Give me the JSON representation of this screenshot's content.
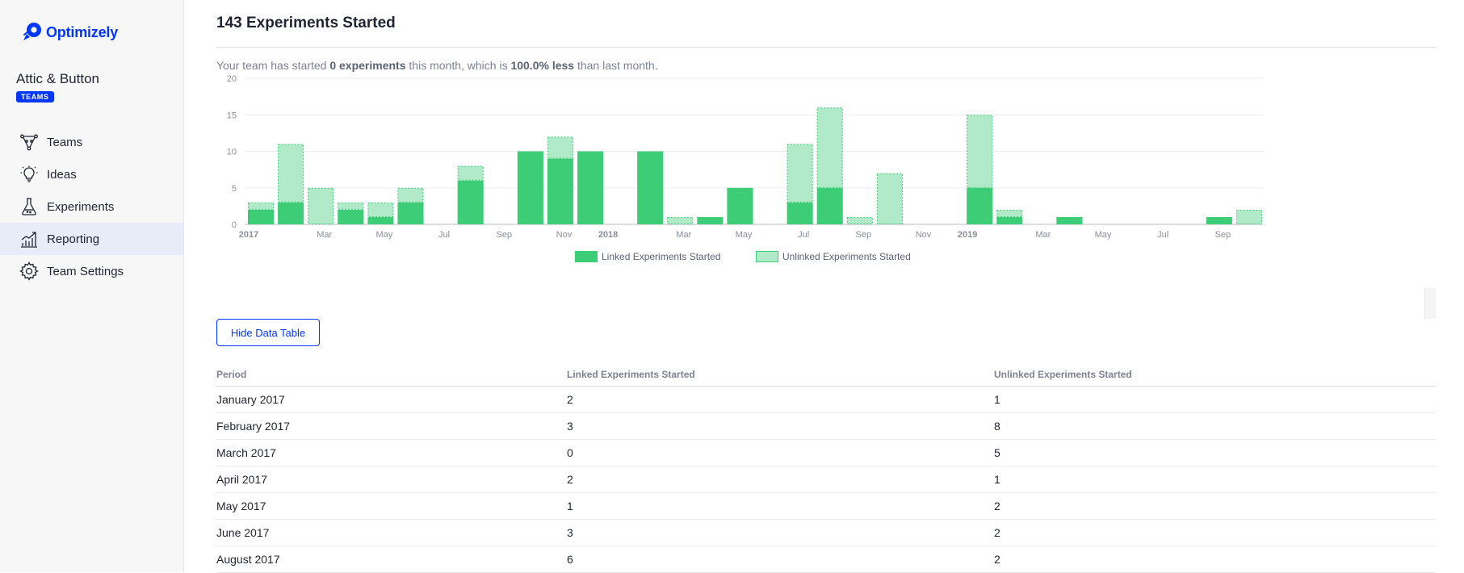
{
  "sidebar": {
    "logo_text": "Optimizely",
    "org_name": "Attic & Button",
    "org_badge": "TEAMS",
    "items": [
      {
        "label": "Teams",
        "icon": "teams-icon",
        "active": false
      },
      {
        "label": "Ideas",
        "icon": "lightbulb-icon",
        "active": false
      },
      {
        "label": "Experiments",
        "icon": "flask-icon",
        "active": false
      },
      {
        "label": "Reporting",
        "icon": "chart-icon",
        "active": true
      },
      {
        "label": "Team Settings",
        "icon": "gear-icon",
        "active": false
      }
    ]
  },
  "main": {
    "title": "143 Experiments Started",
    "summary": {
      "prefix": "Your team has started ",
      "count": "0 experiments",
      "middle": " this month, which is ",
      "change": "100.0% less",
      "suffix": " than last month."
    },
    "hide_button": "Hide Data Table"
  },
  "colors": {
    "linked": "#3ccd76",
    "unlinked": "#b1eac8",
    "unlinked_border": "#3ccd76",
    "brand": "#0037ff"
  },
  "chart_data": {
    "type": "bar",
    "stacked": true,
    "title": "",
    "ylim": [
      0,
      20
    ],
    "yticks": [
      0,
      5,
      10,
      15,
      20
    ],
    "xticks": [
      {
        "label": "2017",
        "index": 0,
        "bold": true
      },
      {
        "label": "Mar",
        "index": 2,
        "bold": false
      },
      {
        "label": "May",
        "index": 4,
        "bold": false
      },
      {
        "label": "Jul",
        "index": 6,
        "bold": false
      },
      {
        "label": "Sep",
        "index": 8,
        "bold": false
      },
      {
        "label": "Nov",
        "index": 10,
        "bold": false
      },
      {
        "label": "2018",
        "index": 12,
        "bold": true
      },
      {
        "label": "Mar",
        "index": 14,
        "bold": false
      },
      {
        "label": "May",
        "index": 16,
        "bold": false
      },
      {
        "label": "Jul",
        "index": 18,
        "bold": false
      },
      {
        "label": "Sep",
        "index": 20,
        "bold": false
      },
      {
        "label": "Nov",
        "index": 22,
        "bold": false
      },
      {
        "label": "2019",
        "index": 24,
        "bold": true
      },
      {
        "label": "Mar",
        "index": 26,
        "bold": false
      },
      {
        "label": "May",
        "index": 28,
        "bold": false
      },
      {
        "label": "Jul",
        "index": 30,
        "bold": false
      },
      {
        "label": "Sep",
        "index": 32,
        "bold": false
      }
    ],
    "months": 34,
    "series": [
      {
        "name": "Linked Experiments Started",
        "values": [
          2,
          3,
          0,
          2,
          1,
          3,
          0,
          6,
          0,
          10,
          9,
          10,
          0,
          10,
          0,
          1,
          5,
          0,
          3,
          5,
          0,
          0,
          0,
          0,
          5,
          1,
          0,
          1,
          0,
          0,
          0,
          0,
          1,
          0
        ]
      },
      {
        "name": "Unlinked Experiments Started",
        "values": [
          1,
          8,
          5,
          1,
          2,
          2,
          0,
          2,
          0,
          0,
          3,
          0,
          0,
          0,
          1,
          0,
          0,
          0,
          8,
          11,
          1,
          7,
          0,
          0,
          10,
          1,
          0,
          0,
          0,
          0,
          0,
          0,
          0,
          2
        ]
      }
    ],
    "legend": [
      "Linked Experiments Started",
      "Unlinked Experiments Started"
    ]
  },
  "table": {
    "headers": [
      "Period",
      "Linked Experiments Started",
      "Unlinked Experiments Started"
    ],
    "rows": [
      [
        "January 2017",
        "2",
        "1"
      ],
      [
        "February 2017",
        "3",
        "8"
      ],
      [
        "March 2017",
        "0",
        "5"
      ],
      [
        "April 2017",
        "2",
        "1"
      ],
      [
        "May 2017",
        "1",
        "2"
      ],
      [
        "June 2017",
        "3",
        "2"
      ],
      [
        "August 2017",
        "6",
        "2"
      ]
    ]
  }
}
